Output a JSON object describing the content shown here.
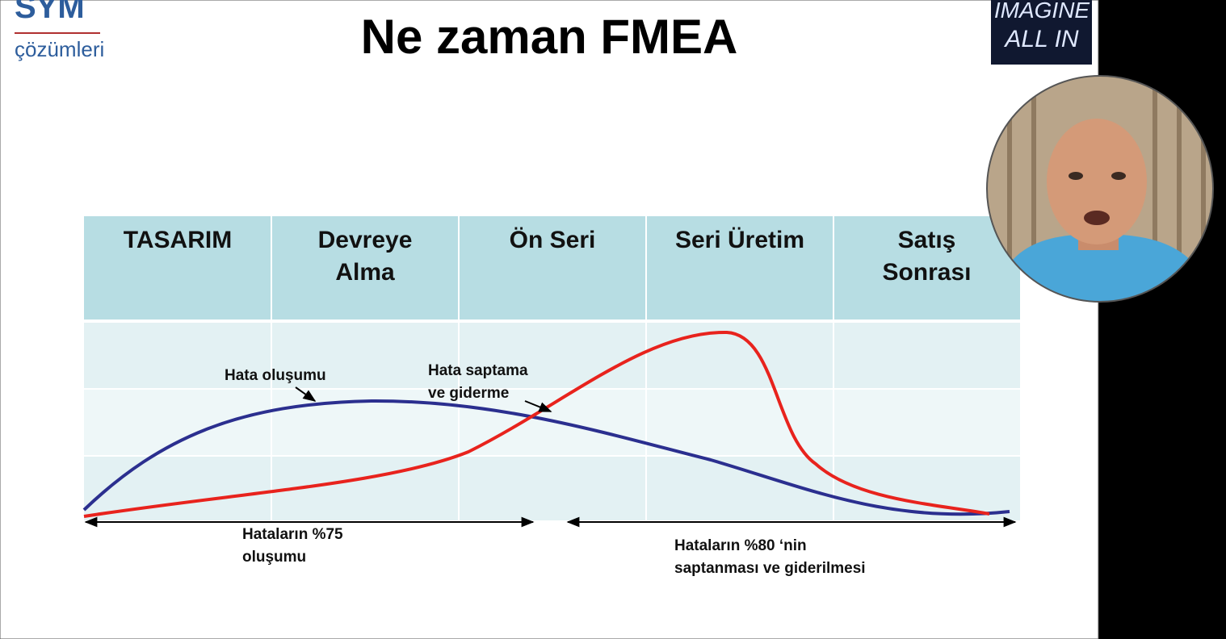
{
  "logo": {
    "name": "SYM",
    "subtitle": "çözümleri"
  },
  "title": "Ne zaman FMEA",
  "badge": {
    "lines": [
      "IMAGINE",
      "ALL IN"
    ]
  },
  "phases": [
    {
      "lines": [
        "TASARIM"
      ]
    },
    {
      "lines": [
        "Devreye",
        "Alma"
      ]
    },
    {
      "lines": [
        "Ön Seri"
      ]
    },
    {
      "lines": [
        "Seri Üretim"
      ]
    },
    {
      "lines": [
        "Satış",
        "Sonrası"
      ]
    }
  ],
  "curves": {
    "occurrence": {
      "lines": [
        "Hata oluşumu"
      ]
    },
    "detection": {
      "lines": [
        "Hata saptama",
        "ve giderme"
      ]
    }
  },
  "spans": {
    "left": {
      "lines": [
        "Hataların %75",
        "oluşumu"
      ]
    },
    "right": {
      "lines": [
        "Hataların %80 ‘nin",
        "saptanması ve giderilmesi"
      ]
    }
  }
}
